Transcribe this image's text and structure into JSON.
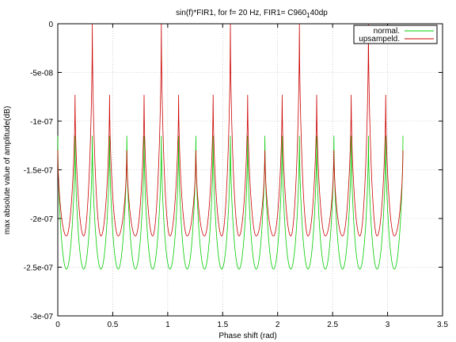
{
  "chart_data": {
    "type": "line",
    "title": "sin(f)*FIR1, for f= 20 Hz, FIR1= C960",
    "title_subscript": "1",
    "title_suffix": "40dp",
    "xlabel": "Phase shift (rad)",
    "ylabel": "max absolute value of amplitude(dB)",
    "xlim": [
      0,
      3.5
    ],
    "ylim": [
      -3e-07,
      0
    ],
    "grid": true,
    "legend_position": "top-right",
    "xticks": [
      0,
      0.5,
      1,
      1.5,
      2,
      2.5,
      3,
      3.5
    ],
    "xtick_labels": [
      "0",
      "0.5",
      "1",
      "1.5",
      "2",
      "2.5",
      "3",
      "3.5"
    ],
    "yticks": [
      0,
      -5e-08,
      -1e-07,
      -1.5e-07,
      -2e-07,
      -2.5e-07,
      -3e-07
    ],
    "ytick_labels": [
      "0",
      "-5e-08",
      "-1e-07",
      "-1.5e-07",
      "-2e-07",
      "-2.5e-07",
      "-3e-07"
    ],
    "x_range": [
      0,
      3.14
    ],
    "series": [
      {
        "name": "normal.",
        "color": "#00cc00",
        "pattern": "periodic_cusps",
        "period": 0.157,
        "first_peak_x": 0.0,
        "peak_value": -1.15e-07,
        "min_value": -2.52e-07
      },
      {
        "name": "upsampeld.",
        "color": "#cc0000",
        "pattern": "periodic_cusps_alternating",
        "period": 0.157,
        "first_big_peak_x": 0.314,
        "big_peak_every": 4,
        "peak_values": [
          0,
          -7.3e-08,
          -1.3e-07,
          -7.3e-08
        ],
        "min_value": -2.18e-07
      }
    ]
  }
}
